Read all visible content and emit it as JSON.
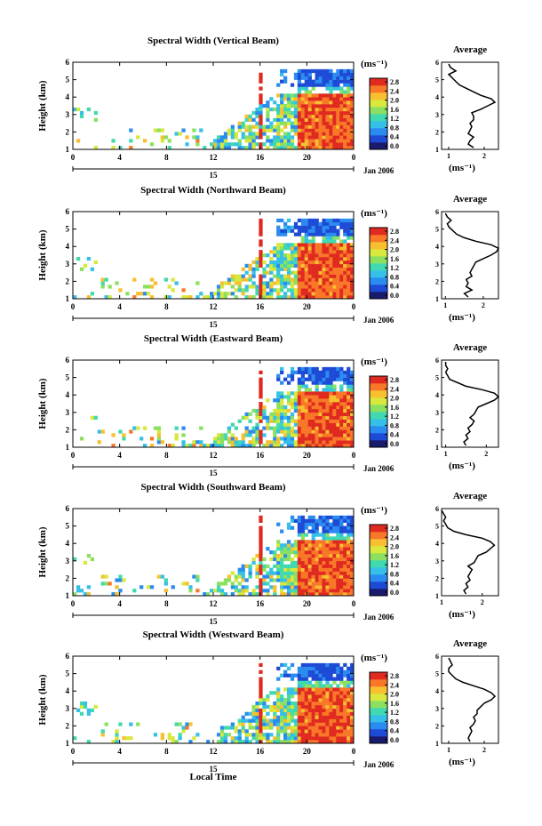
{
  "chart_data": {
    "type": "heatmap",
    "date_label": "Jan 2006",
    "x_label": "Local Time",
    "x_ticks": [
      "0",
      "4",
      "8",
      "12",
      "16",
      "20",
      "0"
    ],
    "x_date_tick": "15",
    "y_label": "Height (km)",
    "y_ticks": [
      "1",
      "2",
      "3",
      "4",
      "5",
      "6"
    ],
    "ylim": [
      1,
      6
    ],
    "colorbar_unit": "(ms⁻¹)",
    "colorbar_ticks": [
      "0.0",
      "0.4",
      "0.8",
      "1.2",
      "1.6",
      "2.0",
      "2.4",
      "2.8"
    ],
    "colorbar_colors": [
      "#1a1a6e",
      "#1e4bd6",
      "#2b8cf0",
      "#36c0e8",
      "#40d9b0",
      "#8ce060",
      "#d8e83c",
      "#f8c030",
      "#f87828",
      "#e02a20"
    ],
    "average_title": "Average",
    "average_xlabel": "(ms⁻¹)",
    "panels": [
      {
        "title": "Spectral Width (Vertical Beam)",
        "average_xticks": [
          "1",
          "2"
        ],
        "average_xlim": [
          0.8,
          2.4
        ],
        "average_profile": {
          "height": [
            1.1,
            1.3,
            1.5,
            1.7,
            1.9,
            2.1,
            2.3,
            2.5,
            2.7,
            2.9,
            3.1,
            3.3,
            3.5,
            3.7,
            3.9,
            4.1,
            4.3,
            4.5,
            4.7,
            4.9,
            5.1,
            5.3,
            5.5,
            5.7,
            5.9
          ],
          "value": [
            1.7,
            1.55,
            1.6,
            1.7,
            1.55,
            1.6,
            1.65,
            1.6,
            1.7,
            1.7,
            1.65,
            1.9,
            2.1,
            2.3,
            2.2,
            1.9,
            1.7,
            1.5,
            1.3,
            1.2,
            1.1,
            1.0,
            1.2,
            1.05,
            1.0
          ]
        }
      },
      {
        "title": "Spectral Width (Northward Beam)",
        "average_xticks": [
          "1",
          "2"
        ],
        "average_xlim": [
          0.9,
          2.4
        ],
        "average_profile": {
          "height": [
            1.1,
            1.3,
            1.5,
            1.7,
            1.9,
            2.1,
            2.3,
            2.5,
            2.7,
            2.9,
            3.1,
            3.3,
            3.5,
            3.7,
            3.9,
            4.1,
            4.3,
            4.5,
            4.7,
            4.9,
            5.1,
            5.3,
            5.5,
            5.7,
            5.9
          ],
          "value": [
            1.6,
            1.5,
            1.7,
            1.55,
            1.6,
            1.55,
            1.7,
            1.65,
            1.7,
            1.75,
            1.8,
            2.0,
            2.2,
            2.35,
            2.4,
            2.2,
            1.8,
            1.5,
            1.3,
            1.2,
            1.1,
            1.05,
            1.15,
            1.05,
            1.0
          ]
        }
      },
      {
        "title": "Spectral Width (Eastward Beam)",
        "average_xticks": [
          "1",
          "2"
        ],
        "average_xlim": [
          0.9,
          2.3
        ],
        "average_profile": {
          "height": [
            1.1,
            1.3,
            1.5,
            1.7,
            1.9,
            2.1,
            2.3,
            2.5,
            2.7,
            2.9,
            3.1,
            3.3,
            3.5,
            3.7,
            3.9,
            4.1,
            4.3,
            4.5,
            4.7,
            4.9,
            5.1,
            5.3,
            5.5,
            5.7,
            5.9
          ],
          "value": [
            1.5,
            1.45,
            1.55,
            1.5,
            1.6,
            1.55,
            1.65,
            1.7,
            1.6,
            1.7,
            1.75,
            1.8,
            2.0,
            2.2,
            2.3,
            2.2,
            1.9,
            1.5,
            1.3,
            1.1,
            1.05,
            1.0,
            1.05,
            1.0,
            1.0
          ]
        }
      },
      {
        "title": "Spectral Width (Southward Beam)",
        "average_xticks": [
          "1",
          "2"
        ],
        "average_xlim": [
          1.0,
          2.4
        ],
        "average_profile": {
          "height": [
            1.1,
            1.3,
            1.5,
            1.7,
            1.9,
            2.1,
            2.3,
            2.5,
            2.7,
            2.9,
            3.1,
            3.3,
            3.5,
            3.7,
            3.9,
            4.1,
            4.3,
            4.5,
            4.7,
            4.9,
            5.1,
            5.3,
            5.5,
            5.7,
            5.9
          ],
          "value": [
            1.6,
            1.55,
            1.65,
            1.6,
            1.7,
            1.65,
            1.7,
            1.75,
            1.65,
            1.8,
            1.85,
            1.9,
            2.1,
            2.2,
            2.3,
            2.2,
            2.0,
            1.6,
            1.3,
            1.15,
            1.1,
            1.05,
            1.1,
            1.05,
            1.0
          ]
        }
      },
      {
        "title": "Spectral Width (Westward Beam)",
        "average_xticks": [
          "1",
          "2"
        ],
        "average_xlim": [
          0.8,
          2.4
        ],
        "average_profile": {
          "height": [
            1.1,
            1.3,
            1.5,
            1.7,
            1.9,
            2.1,
            2.3,
            2.5,
            2.7,
            2.9,
            3.1,
            3.3,
            3.5,
            3.7,
            3.9,
            4.1,
            4.3,
            4.5,
            4.7,
            4.9,
            5.1,
            5.3,
            5.5,
            5.7,
            5.9
          ],
          "value": [
            1.6,
            1.55,
            1.6,
            1.65,
            1.6,
            1.7,
            1.75,
            1.7,
            1.8,
            1.8,
            1.9,
            2.0,
            2.2,
            2.3,
            2.2,
            2.0,
            1.7,
            1.4,
            1.2,
            1.1,
            1.0,
            1.0,
            1.1,
            1.05,
            1.0
          ]
        }
      }
    ]
  }
}
